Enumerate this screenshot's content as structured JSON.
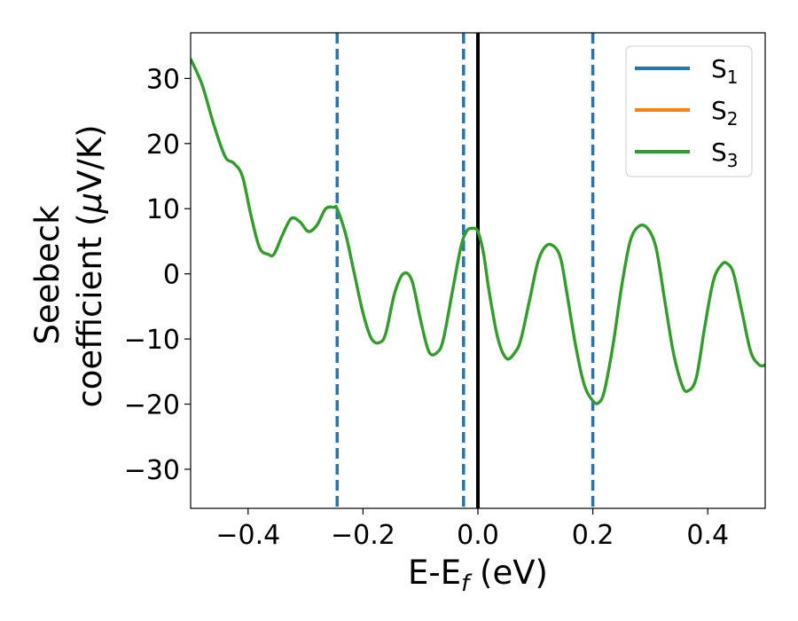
{
  "chart_data": {
    "type": "line",
    "title": "",
    "xlabel": "E-E",
    "xlabel_sub": "f",
    "xlabel_unit": " (eV)",
    "ylabel_line1": "Seebeck",
    "ylabel_line2": "coefficient  (",
    "ylabel_mu": "μ",
    "ylabel_unit": "V/K)",
    "xlim": [
      -0.5,
      0.5
    ],
    "ylim": [
      -36,
      37
    ],
    "xticks": [
      -0.4,
      -0.2,
      0.0,
      0.2,
      0.4
    ],
    "xtick_labels": [
      "−0.4",
      "−0.2",
      "0.0",
      "0.2",
      "0.4"
    ],
    "yticks": [
      -30,
      -20,
      -10,
      0,
      10,
      20,
      30
    ],
    "ytick_labels": [
      "−30",
      "−20",
      "−10",
      "0",
      "10",
      "20",
      "30"
    ],
    "grid": false,
    "legend_position": "top-right",
    "series": [
      {
        "name": "S",
        "sub": "1",
        "color": "#1f77b4"
      },
      {
        "name": "S",
        "sub": "2",
        "color": "#ff7f0e"
      },
      {
        "name": "S",
        "sub": "3",
        "color": "#2ca02c"
      }
    ],
    "x": [
      -0.5,
      -0.48,
      -0.46,
      -0.44,
      -0.425,
      -0.41,
      -0.395,
      -0.38,
      -0.365,
      -0.355,
      -0.34,
      -0.325,
      -0.31,
      -0.295,
      -0.28,
      -0.265,
      -0.25,
      -0.245,
      -0.23,
      -0.215,
      -0.2,
      -0.185,
      -0.17,
      -0.16,
      -0.145,
      -0.13,
      -0.115,
      -0.1,
      -0.085,
      -0.07,
      -0.06,
      -0.045,
      -0.03,
      -0.02,
      -0.01,
      0.0,
      0.01,
      0.02,
      0.035,
      0.05,
      0.065,
      0.075,
      0.09,
      0.105,
      0.12,
      0.135,
      0.145,
      0.155,
      0.17,
      0.185,
      0.2,
      0.21,
      0.22,
      0.235,
      0.25,
      0.265,
      0.28,
      0.295,
      0.31,
      0.325,
      0.34,
      0.355,
      0.365,
      0.38,
      0.395,
      0.41,
      0.425,
      0.435,
      0.445,
      0.46,
      0.475,
      0.49,
      0.5
    ],
    "y": [
      33,
      29,
      23,
      18,
      17,
      15,
      9,
      4,
      3,
      3,
      6,
      8.5,
      8,
      6.5,
      7.5,
      10,
      10.2,
      10,
      6,
      0,
      -6,
      -10,
      -10.5,
      -9,
      -3,
      0,
      -1,
      -7,
      -12,
      -12,
      -10,
      -3,
      4,
      6.5,
      7,
      6.5,
      3,
      -3,
      -10,
      -13,
      -12,
      -10,
      -4,
      2,
      4.4,
      4,
      2,
      -3,
      -11,
      -17,
      -19.5,
      -19.8,
      -18,
      -11,
      -2,
      5,
      7.3,
      7,
      4,
      -4,
      -12,
      -17,
      -18,
      -16,
      -8,
      -1,
      1.5,
      1.5,
      0,
      -6,
      -12,
      -14,
      -14
    ],
    "vlines": [
      {
        "x": -0.245,
        "color": "#1f77b4",
        "style": "dashed"
      },
      {
        "x": -0.025,
        "color": "#1f77b4",
        "style": "dashed"
      },
      {
        "x": 0.2,
        "color": "#1f77b4",
        "style": "dashed"
      },
      {
        "x": 0.0,
        "color": "#000000",
        "style": "solid"
      }
    ]
  }
}
